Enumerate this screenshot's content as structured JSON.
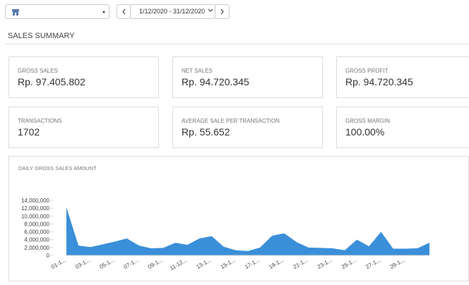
{
  "header": {
    "date_range": "1/12/2020 - 31/12/2020"
  },
  "page_title": "SALES SUMMARY",
  "cards": [
    {
      "label": "GROSS SALES",
      "value": "Rp. 97.405.802"
    },
    {
      "label": "NET SALES",
      "value": "Rp. 94.720.345"
    },
    {
      "label": "GROSS PROFIT",
      "value": "Rp. 94.720.345"
    },
    {
      "label": "TRANSACTIONS",
      "value": "1702"
    },
    {
      "label": "AVERAGE SALE PER TRANSACTION",
      "value": "Rp. 55.652"
    },
    {
      "label": "GROSS MARGIN",
      "value": "100.00%"
    }
  ],
  "chart_data": {
    "type": "area",
    "title": "DAILY GROSS SALES AMOUNT",
    "color": "#3a8fd9",
    "categories": [
      "01-1...",
      null,
      "03-1...",
      null,
      "05-1...",
      null,
      "07-1...",
      null,
      "09-1...",
      null,
      "11-12...",
      null,
      "13-1...",
      null,
      "15-1...",
      null,
      "17-1...",
      null,
      "19-1...",
      null,
      "21-1...",
      null,
      "23-1...",
      null,
      "25-1...",
      null,
      "27-1...",
      null,
      "29-1...",
      null,
      null
    ],
    "values": [
      12200000,
      2500000,
      2100000,
      2800000,
      3500000,
      4300000,
      2500000,
      1800000,
      1900000,
      3200000,
      2700000,
      4300000,
      4900000,
      2200000,
      1300000,
      1100000,
      2000000,
      5000000,
      5600000,
      3400000,
      2000000,
      1900000,
      1800000,
      1300000,
      4000000,
      2300000,
      6000000,
      1700000,
      1700000,
      1800000,
      3200000
    ],
    "ylim": [
      0,
      14000000
    ],
    "yticks": [
      0,
      {
        "value": 2000000,
        "label": "2,000,000"
      },
      {
        "value": 4000000,
        "label": "4,000,000"
      },
      {
        "value": 6000000,
        "label": "6,000,000"
      },
      {
        "value": 8000000,
        "label": "8,000,000"
      },
      {
        "value": 10000000,
        "label": "10,000,000"
      },
      {
        "value": 12000000,
        "label": "12,000,000"
      },
      {
        "value": 14000000,
        "label": "14,000,000"
      }
    ]
  }
}
